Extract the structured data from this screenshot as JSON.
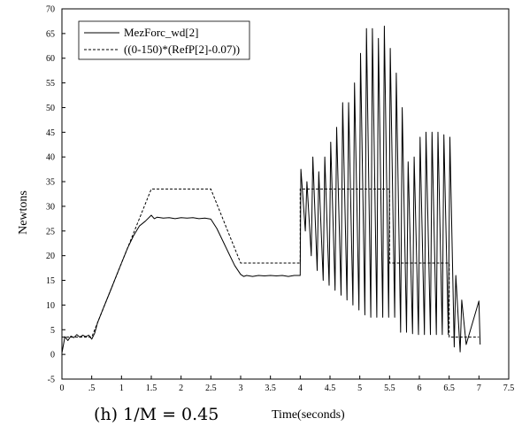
{
  "chart_data": {
    "type": "line",
    "xlabel": "Time(seconds)",
    "ylabel": "Newtons",
    "caption": "(h) 1/M = 0.45",
    "xlim": [
      0,
      7.5
    ],
    "ylim": [
      -5,
      70
    ],
    "xticks": [
      "0",
      ".5",
      "1",
      "1.5",
      "2",
      "2.5",
      "3",
      "3.5",
      "4",
      "4.5",
      "5",
      "5.5",
      "6",
      "6.5",
      "7",
      "7.5"
    ],
    "yticks": [
      "-5",
      "0",
      "5",
      "10",
      "15",
      "20",
      "25",
      "30",
      "35",
      "40",
      "45",
      "50",
      "55",
      "60",
      "65",
      "70"
    ],
    "legend_position": "top-left",
    "series": [
      {
        "name": "MezForc_wd[2]",
        "style": "solid",
        "color": "#000000",
        "x": [
          0,
          0.05,
          0.1,
          0.15,
          0.2,
          0.25,
          0.3,
          0.35,
          0.4,
          0.45,
          0.5,
          0.55,
          0.6,
          0.7,
          0.8,
          0.9,
          1.0,
          1.1,
          1.2,
          1.3,
          1.4,
          1.5,
          1.55,
          1.6,
          1.7,
          1.8,
          1.9,
          2.0,
          2.1,
          2.2,
          2.3,
          2.4,
          2.5,
          2.6,
          2.7,
          2.8,
          2.9,
          3.0,
          3.05,
          3.1,
          3.2,
          3.3,
          3.4,
          3.5,
          3.6,
          3.7,
          3.8,
          3.9,
          4.0
        ],
        "y": [
          0.3,
          3.6,
          2.8,
          3.7,
          3.4,
          4.0,
          3.5,
          3.9,
          3.6,
          3.9,
          3.1,
          4.3,
          6.5,
          9.5,
          12.5,
          15.5,
          18.5,
          21.5,
          24.0,
          26.0,
          27.0,
          28.2,
          27.5,
          27.8,
          27.6,
          27.7,
          27.5,
          27.7,
          27.6,
          27.7,
          27.5,
          27.6,
          27.4,
          25.5,
          23.0,
          20.5,
          18.0,
          16.2,
          15.8,
          16.0,
          15.8,
          16.0,
          15.9,
          16.0,
          15.9,
          16.0,
          15.8,
          16.0,
          16.0
        ],
        "oscillation": {
          "x_start": 4.0,
          "x_end": 6.65,
          "period": 0.1,
          "peaks": [
            37.5,
            35,
            40,
            37,
            40,
            43,
            46,
            51,
            51,
            55,
            61,
            66,
            66,
            64,
            66.5,
            62,
            57,
            50,
            39,
            40,
            44,
            45,
            45,
            45,
            44.5,
            44,
            16,
            11
          ],
          "troughs": [
            25,
            20,
            17,
            15,
            14,
            13,
            12,
            11,
            10,
            9,
            8,
            7.5,
            7.5,
            7.5,
            7.5,
            7.5,
            4.5,
            4.5,
            4.2,
            4.0,
            4.0,
            4.0,
            4.0,
            4.0,
            4.0,
            1.5,
            0.5,
            2.0
          ]
        }
      },
      {
        "name": "((0-150)*(RefP[2]-0.07))",
        "style": "dashed",
        "color": "#000000",
        "x": [
          0,
          0.5,
          1.5,
          2.5,
          3.0,
          4.0,
          4.0,
          5.5,
          5.5,
          6.5,
          6.5,
          7.0
        ],
        "y": [
          3.5,
          3.5,
          33.5,
          33.5,
          18.5,
          18.5,
          33.5,
          33.5,
          18.5,
          18.5,
          3.5,
          3.5
        ]
      }
    ]
  }
}
